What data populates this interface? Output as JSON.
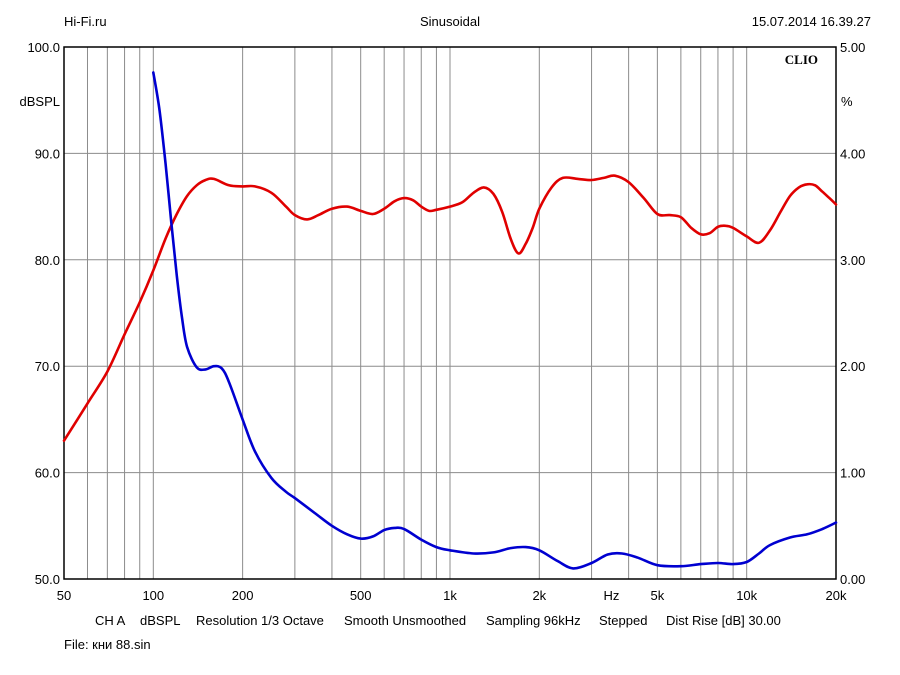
{
  "header": {
    "left": "Hi-Fi.ru",
    "center": "Sinusoidal",
    "right": "15.07.2014 16.39.27"
  },
  "chart_data": {
    "type": "line",
    "x_scale": "log",
    "xlim": [
      50,
      20000
    ],
    "x_ticks": [
      {
        "value": 50,
        "label": "50"
      },
      {
        "value": 100,
        "label": "100"
      },
      {
        "value": 200,
        "label": "200"
      },
      {
        "value": 500,
        "label": "500"
      },
      {
        "value": 1000,
        "label": "1k"
      },
      {
        "value": 2000,
        "label": "2k"
      },
      {
        "value": 3500,
        "label": "Hz"
      },
      {
        "value": 5000,
        "label": "5k"
      },
      {
        "value": 10000,
        "label": "10k"
      },
      {
        "value": 20000,
        "label": "20k"
      }
    ],
    "y_left": {
      "unit": "dBSPL",
      "lim": [
        50,
        100
      ],
      "ticks": [
        "50.0",
        "60.0",
        "70.0",
        "80.0",
        "90.0",
        "100.0"
      ]
    },
    "y_right": {
      "unit": "%",
      "lim": [
        0,
        5
      ],
      "ticks": [
        "0.00",
        "1.00",
        "2.00",
        "3.00",
        "4.00",
        "5.00"
      ]
    },
    "grid": true,
    "brand": "CLIO",
    "series": [
      {
        "axis": "left",
        "color": "#e00000",
        "points": [
          [
            50,
            63
          ],
          [
            60,
            66.5
          ],
          [
            70,
            69.5
          ],
          [
            80,
            73
          ],
          [
            90,
            76
          ],
          [
            100,
            79
          ],
          [
            110,
            82
          ],
          [
            120,
            84.3
          ],
          [
            130,
            86
          ],
          [
            140,
            87
          ],
          [
            150,
            87.5
          ],
          [
            160,
            87.6
          ],
          [
            180,
            87
          ],
          [
            200,
            86.9
          ],
          [
            220,
            86.9
          ],
          [
            250,
            86.3
          ],
          [
            280,
            85
          ],
          [
            300,
            84.2
          ],
          [
            330,
            83.8
          ],
          [
            360,
            84.2
          ],
          [
            400,
            84.8
          ],
          [
            450,
            85
          ],
          [
            500,
            84.6
          ],
          [
            550,
            84.3
          ],
          [
            600,
            84.8
          ],
          [
            650,
            85.5
          ],
          [
            700,
            85.8
          ],
          [
            750,
            85.6
          ],
          [
            800,
            85
          ],
          [
            850,
            84.6
          ],
          [
            900,
            84.7
          ],
          [
            1000,
            85
          ],
          [
            1100,
            85.4
          ],
          [
            1200,
            86.3
          ],
          [
            1300,
            86.8
          ],
          [
            1400,
            86.2
          ],
          [
            1500,
            84.5
          ],
          [
            1600,
            82
          ],
          [
            1700,
            80.6
          ],
          [
            1800,
            81.5
          ],
          [
            1900,
            83
          ],
          [
            2000,
            84.8
          ],
          [
            2200,
            86.8
          ],
          [
            2400,
            87.7
          ],
          [
            2700,
            87.6
          ],
          [
            3000,
            87.5
          ],
          [
            3300,
            87.7
          ],
          [
            3600,
            87.9
          ],
          [
            4000,
            87.3
          ],
          [
            4500,
            85.8
          ],
          [
            5000,
            84.3
          ],
          [
            5500,
            84.2
          ],
          [
            6000,
            84
          ],
          [
            6500,
            83
          ],
          [
            7000,
            82.4
          ],
          [
            7500,
            82.5
          ],
          [
            8000,
            83.1
          ],
          [
            8500,
            83.2
          ],
          [
            9000,
            83
          ],
          [
            10000,
            82.2
          ],
          [
            11000,
            81.6
          ],
          [
            12000,
            82.8
          ],
          [
            13000,
            84.5
          ],
          [
            14000,
            86
          ],
          [
            15000,
            86.8
          ],
          [
            16000,
            87.1
          ],
          [
            17000,
            87
          ],
          [
            18000,
            86.4
          ],
          [
            19000,
            85.8
          ],
          [
            20000,
            85.2
          ]
        ]
      },
      {
        "axis": "right",
        "color": "#0000d0",
        "points": [
          [
            100,
            4.76
          ],
          [
            105,
            4.4
          ],
          [
            110,
            3.9
          ],
          [
            115,
            3.35
          ],
          [
            120,
            2.85
          ],
          [
            125,
            2.45
          ],
          [
            130,
            2.18
          ],
          [
            140,
            1.99
          ],
          [
            150,
            1.97
          ],
          [
            160,
            2.0
          ],
          [
            170,
            1.98
          ],
          [
            180,
            1.85
          ],
          [
            200,
            1.5
          ],
          [
            220,
            1.2
          ],
          [
            250,
            0.95
          ],
          [
            280,
            0.82
          ],
          [
            300,
            0.76
          ],
          [
            350,
            0.62
          ],
          [
            400,
            0.5
          ],
          [
            450,
            0.42
          ],
          [
            500,
            0.38
          ],
          [
            550,
            0.4
          ],
          [
            600,
            0.46
          ],
          [
            650,
            0.48
          ],
          [
            700,
            0.47
          ],
          [
            800,
            0.37
          ],
          [
            900,
            0.3
          ],
          [
            1000,
            0.27
          ],
          [
            1200,
            0.24
          ],
          [
            1400,
            0.25
          ],
          [
            1600,
            0.29
          ],
          [
            1800,
            0.3
          ],
          [
            2000,
            0.27
          ],
          [
            2300,
            0.17
          ],
          [
            2600,
            0.1
          ],
          [
            3000,
            0.15
          ],
          [
            3400,
            0.23
          ],
          [
            3800,
            0.24
          ],
          [
            4300,
            0.2
          ],
          [
            5000,
            0.13
          ],
          [
            6000,
            0.12
          ],
          [
            7000,
            0.14
          ],
          [
            8000,
            0.15
          ],
          [
            9000,
            0.14
          ],
          [
            10000,
            0.16
          ],
          [
            11000,
            0.24
          ],
          [
            12000,
            0.32
          ],
          [
            14000,
            0.39
          ],
          [
            16000,
            0.42
          ],
          [
            18000,
            0.47
          ],
          [
            20000,
            0.53
          ]
        ]
      }
    ]
  },
  "footer": {
    "items": [
      {
        "text": "CH A",
        "x": 95
      },
      {
        "text": "dBSPL",
        "x": 140
      },
      {
        "text": "Resolution 1/3 Octave",
        "x": 196
      },
      {
        "text": "Smooth Unsmoothed",
        "x": 344
      },
      {
        "text": "Sampling 96kHz",
        "x": 486
      },
      {
        "text": "Stepped",
        "x": 599
      },
      {
        "text": "Dist Rise [dB] 30.00",
        "x": 666
      }
    ],
    "file": "File: кни 88.sin"
  }
}
